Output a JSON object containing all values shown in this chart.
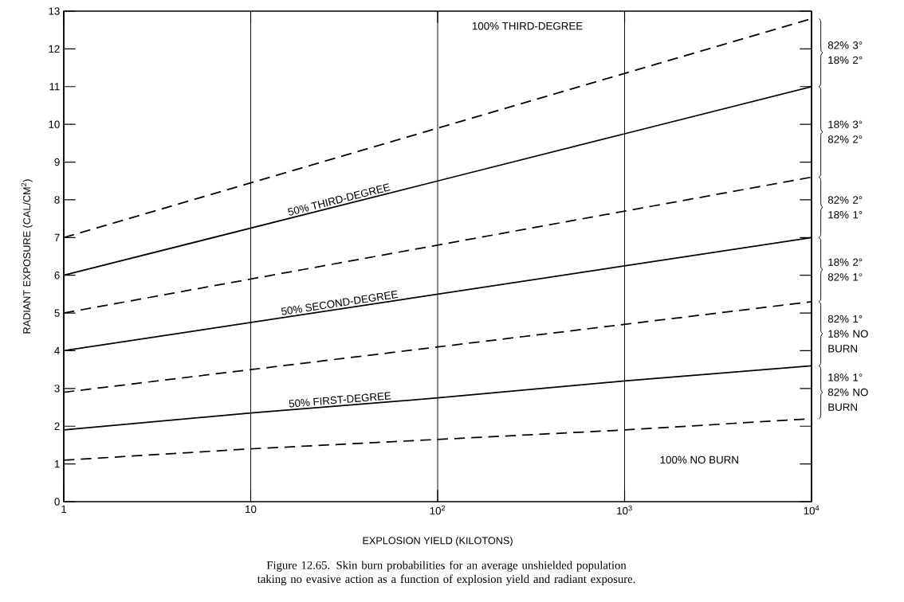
{
  "chart_data": {
    "type": "line",
    "xlabel": "EXPLOSION YIELD (KILOTONS)",
    "ylabel": "RADIANT EXPOSURE (CAL/CM$^{2}$)",
    "x": [
      1,
      10,
      100,
      1000,
      10000
    ],
    "series": [
      {
        "color": "#000000",
        "line_style": "dashed",
        "values": [
          7.0,
          8.45,
          9.9,
          11.35,
          12.8
        ]
      },
      {
        "name": "50% THIRD-DEGREE",
        "color": "#000000",
        "line_style": "solid",
        "values": [
          6.0,
          7.25,
          8.5,
          9.75,
          11.0
        ]
      },
      {
        "color": "#000000",
        "line_style": "dashed",
        "values": [
          5.0,
          5.9,
          6.8,
          7.7,
          8.6
        ]
      },
      {
        "name": "50% SECOND-DEGREE",
        "color": "#000000",
        "line_style": "solid",
        "values": [
          4.0,
          4.75,
          5.5,
          6.25,
          7.0
        ]
      },
      {
        "color": "#000000",
        "line_style": "dashed",
        "values": [
          2.9,
          3.5,
          4.1,
          4.7,
          5.3
        ]
      },
      {
        "name": "50% FIRST-DEGREE",
        "color": "#000000",
        "line_style": "solid",
        "values": [
          1.9,
          2.35,
          2.75,
          3.2,
          3.6
        ]
      },
      {
        "color": "#000000",
        "line_style": "dashed",
        "values": [
          1.1,
          1.4,
          1.65,
          1.9,
          2.2
        ]
      }
    ],
    "log": "x",
    "xlim": [
      1,
      10000
    ],
    "ylim": [
      0,
      13
    ],
    "xticks": [
      1,
      10,
      {
        "value": 100,
        "label": "10$^{2}$"
      },
      {
        "value": 1000,
        "label": "10$^{3}$"
      },
      {
        "value": 10000,
        "label": "10$^{4}$"
      }
    ],
    "yticks": [
      0,
      1,
      2,
      3,
      4,
      5,
      6,
      7,
      8,
      9,
      10,
      11,
      12,
      13
    ],
    "grid": "x",
    "annotations": [
      "100% THIRD-DEGREE",
      "100% NO BURN",
      "82% 3° 18% 2°",
      "18% 3° 82% 2°",
      "82% 2° 18% 1°",
      "18% 2° 82% 1°",
      "82% 1° 18% NO BURN",
      "18% 1° 82% NO BURN",
      "Figure 12.65.  Skin burn probabilities for an average unshielded population taking no evasive action as a function of explosion yield and radiant exposure."
    ]
  }
}
